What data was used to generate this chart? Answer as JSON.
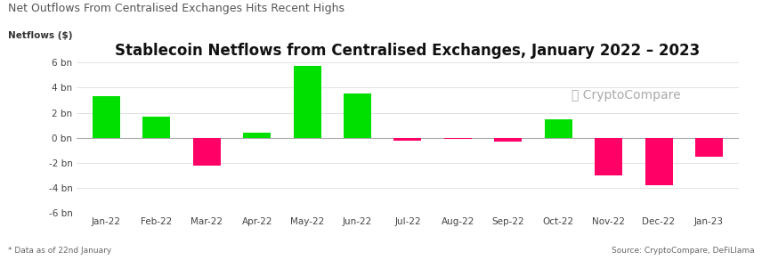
{
  "title": "Stablecoin Netflows from Centralised Exchanges, January 2022 – 2023",
  "super_title": "Net Outflows From Centralised Exchanges Hits Recent Highs",
  "ylabel": "Netflows ($)",
  "categories": [
    "Jan-22",
    "Feb-22",
    "Mar-22",
    "Apr-22",
    "May-22",
    "Jun-22",
    "Jul-22",
    "Aug-22",
    "Sep-22",
    "Oct-22",
    "Nov-22",
    "Dec-22",
    "Jan-23"
  ],
  "values": [
    3.3,
    1.7,
    -2.2,
    0.4,
    5.7,
    3.5,
    -0.2,
    -0.08,
    -0.3,
    1.5,
    -3.0,
    -3.8,
    -1.5
  ],
  "green_color": "#00e000",
  "red_color": "#ff0066",
  "ylim": [
    -6,
    6
  ],
  "yticks": [
    -6,
    -4,
    -2,
    0,
    2,
    4,
    6
  ],
  "ytick_labels": [
    "-6 bn",
    "-4 bn",
    "-2 bn",
    "0 bn",
    "2 bn",
    "4 bn",
    "6 bn"
  ],
  "background_color": "#ffffff",
  "title_fontsize": 12,
  "super_title_fontsize": 9,
  "watermark_text": "ⓘ CryptoCompare",
  "footnote": "* Data as of 22nd January",
  "source": "Source: CryptoCompare, DeFiLlama"
}
